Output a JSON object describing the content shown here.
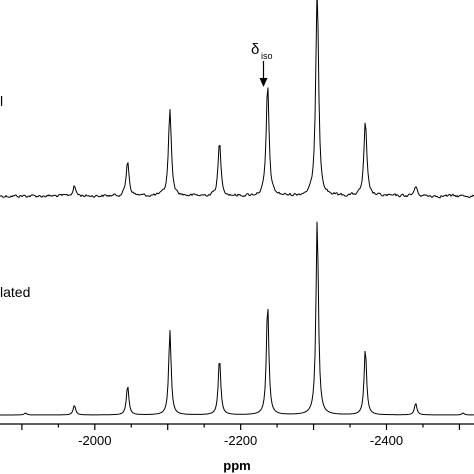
{
  "chart_data": {
    "type": "line",
    "xlabel": "ppm",
    "x_reversed": true,
    "xlim": [
      -1870,
      -2520
    ],
    "x_ticks": [
      -2000,
      -2200,
      -2400
    ],
    "x_tick_labels": [
      "-2000",
      "-2200",
      "-2400"
    ],
    "panel_labels": {
      "experimental": "l",
      "simulated": "lated"
    },
    "annotation": {
      "main": "δ",
      "sub": "iso",
      "x": -2237
    },
    "series": [
      {
        "role": "experimental",
        "peaks": [
          {
            "x": -1972,
            "height": 0.06
          },
          {
            "x": -2045,
            "height": 0.22
          },
          {
            "x": -2103,
            "height": 0.54
          },
          {
            "x": -2171,
            "height": 0.33
          },
          {
            "x": -2237,
            "height": 0.69
          },
          {
            "x": -2305,
            "height": 1.29
          },
          {
            "x": -2371,
            "height": 0.46
          },
          {
            "x": -2440,
            "height": 0.06
          }
        ]
      },
      {
        "role": "simulated",
        "peaks": [
          {
            "x": -1905,
            "height": 0.01
          },
          {
            "x": -1972,
            "height": 0.05
          },
          {
            "x": -2045,
            "height": 0.15
          },
          {
            "x": -2103,
            "height": 0.43
          },
          {
            "x": -2171,
            "height": 0.29
          },
          {
            "x": -2237,
            "height": 0.57
          },
          {
            "x": -2305,
            "height": 1.0
          },
          {
            "x": -2371,
            "height": 0.34
          },
          {
            "x": -2440,
            "height": 0.06
          },
          {
            "x": -2505,
            "height": 0.01
          }
        ]
      }
    ]
  }
}
